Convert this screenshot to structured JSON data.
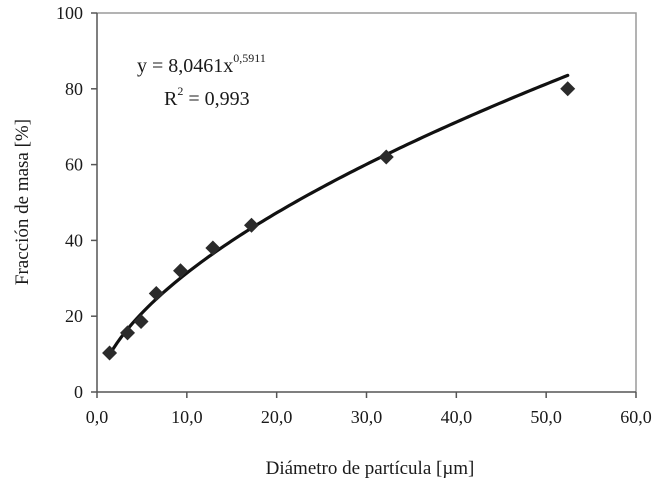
{
  "chart_data": {
    "type": "scatter",
    "xlabel": "Diámetro de partícula [µm]",
    "ylabel": "Fracción de masa [%]",
    "xlim": [
      0,
      60
    ],
    "ylim": [
      0,
      100
    ],
    "x_ticks": [
      "0,0",
      "10,0",
      "20,0",
      "30,0",
      "40,0",
      "50,0",
      "60,0"
    ],
    "y_ticks": [
      "0",
      "20",
      "40",
      "60",
      "80",
      "100"
    ],
    "grid": false,
    "legend": "none",
    "marker": "diamond",
    "points": [
      {
        "x": 1.4,
        "y": 10.3
      },
      {
        "x": 3.4,
        "y": 15.6
      },
      {
        "x": 4.9,
        "y": 18.6
      },
      {
        "x": 6.6,
        "y": 26.0
      },
      {
        "x": 9.3,
        "y": 32.0
      },
      {
        "x": 12.9,
        "y": 38.0
      },
      {
        "x": 17.2,
        "y": 44.0
      },
      {
        "x": 32.2,
        "y": 62.0
      },
      {
        "x": 52.4,
        "y": 80.0
      }
    ],
    "trendline": {
      "type": "power",
      "coefficient": 8.0461,
      "exponent": 0.5911,
      "x_range": [
        1.4,
        52.4
      ]
    },
    "annotations": {
      "equation_main": "y = 8,0461x",
      "equation_exp": "0,5911",
      "r2_prefix": "R",
      "r2_sup": "2",
      "r2_value": " = 0,993"
    },
    "colors": {
      "points": "#2b2b2b",
      "curve": "#111111",
      "axes": "#555555",
      "frame": "#9a9a9a"
    }
  }
}
